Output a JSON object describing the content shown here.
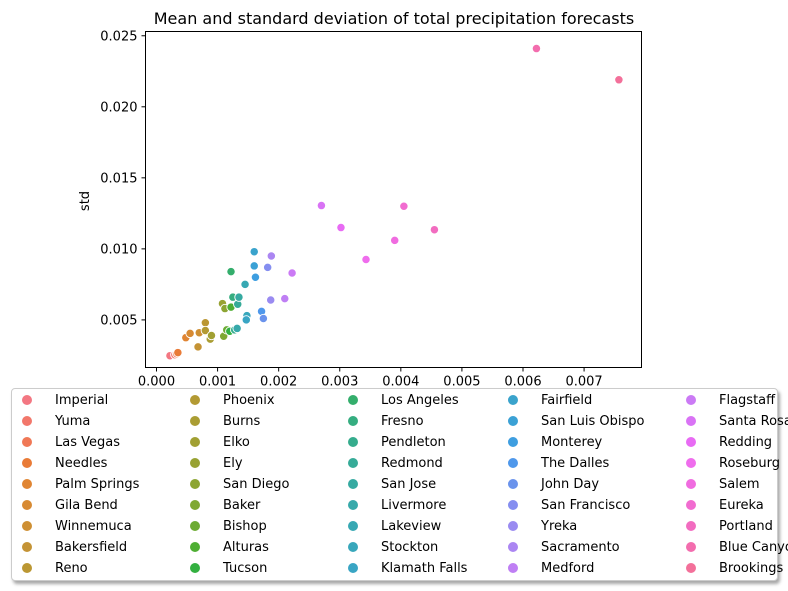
{
  "chart_data": {
    "type": "scatter",
    "title": "Mean and standard deviation of total precipitation forecasts",
    "xlabel": "",
    "ylabel": "std",
    "xlim": [
      -0.00018,
      0.00794
    ],
    "ylim": [
      0.00165,
      0.0253
    ],
    "x_ticks": [
      "0.000",
      "0.001",
      "0.002",
      "0.003",
      "0.004",
      "0.005",
      "0.006",
      "0.007"
    ],
    "x_tick_values": [
      0,
      0.001,
      0.002,
      0.003,
      0.004,
      0.005,
      0.006,
      0.007
    ],
    "y_ticks": [
      "0.005",
      "0.010",
      "0.015",
      "0.020",
      "0.025"
    ],
    "y_tick_values": [
      0.005,
      0.01,
      0.015,
      0.02,
      0.025
    ],
    "grid": false,
    "legend_position": "bottom, outside plot, 5 columns",
    "series": [
      {
        "name": "Imperial",
        "color": "#f37782",
        "x": 0.00022,
        "y": 0.00248
      },
      {
        "name": "Yuma",
        "color": "#f2776b",
        "x": 0.0003,
        "y": 0.00255
      },
      {
        "name": "Las Vegas",
        "color": "#f07856",
        "x": 0.00033,
        "y": 0.00262
      },
      {
        "name": "Needles",
        "color": "#e97b37",
        "x": 0.00035,
        "y": 0.0027
      },
      {
        "name": "Palm Springs",
        "color": "#e08533",
        "x": 0.00048,
        "y": 0.00375
      },
      {
        "name": "Gila Bend",
        "color": "#d78a33",
        "x": 0.00055,
        "y": 0.00405
      },
      {
        "name": "Winnemuca",
        "color": "#ce8f33",
        "x": 0.0007,
        "y": 0.0041
      },
      {
        "name": "Bakersfield",
        "color": "#c49335",
        "x": 0.00068,
        "y": 0.0031
      },
      {
        "name": "Reno",
        "color": "#bb9733",
        "x": 0.0008,
        "y": 0.0048
      },
      {
        "name": "Phoenix",
        "color": "#b39a33",
        "x": 0.0008,
        "y": 0.00425
      },
      {
        "name": "Burns",
        "color": "#aa9d33",
        "x": 0.00088,
        "y": 0.00365
      },
      {
        "name": "Elko",
        "color": "#a1a033",
        "x": 0.0009,
        "y": 0.0039
      },
      {
        "name": "Ely",
        "color": "#98a233",
        "x": 0.00108,
        "y": 0.00615
      },
      {
        "name": "San Diego",
        "color": "#8da533",
        "x": 0.00112,
        "y": 0.0058
      },
      {
        "name": "Baker",
        "color": "#7fa833",
        "x": 0.0011,
        "y": 0.00385
      },
      {
        "name": "Bishop",
        "color": "#6cab33",
        "x": 0.00115,
        "y": 0.0043
      },
      {
        "name": "Alturas",
        "color": "#4eae33",
        "x": 0.00122,
        "y": 0.0059
      },
      {
        "name": "Tucson",
        "color": "#33b040",
        "x": 0.0012,
        "y": 0.0042
      },
      {
        "name": "Los Angeles",
        "color": "#34ae6c",
        "x": 0.00122,
        "y": 0.0084
      },
      {
        "name": "Fresno",
        "color": "#35ad80",
        "x": 0.00125,
        "y": 0.0066
      },
      {
        "name": "Pendleton",
        "color": "#35ac8d",
        "x": 0.00128,
        "y": 0.0043
      },
      {
        "name": "Redmond",
        "color": "#36ab98",
        "x": 0.00133,
        "y": 0.0061
      },
      {
        "name": "San Jose",
        "color": "#36aaa1",
        "x": 0.00135,
        "y": 0.0066
      },
      {
        "name": "Livermore",
        "color": "#37a9aa",
        "x": 0.00132,
        "y": 0.0044
      },
      {
        "name": "Lakeview",
        "color": "#37a8b3",
        "x": 0.00145,
        "y": 0.0075
      },
      {
        "name": "Stockton",
        "color": "#38a7bb",
        "x": 0.00148,
        "y": 0.0053
      },
      {
        "name": "Klamath Falls",
        "color": "#39a5c4",
        "x": 0.00147,
        "y": 0.005
      },
      {
        "name": "Fairfield",
        "color": "#3aa3cc",
        "x": 0.0016,
        "y": 0.0098
      },
      {
        "name": "San Luis Obispo",
        "color": "#3ba1d5",
        "x": 0.0016,
        "y": 0.0088
      },
      {
        "name": "Monterey",
        "color": "#3e9ee0",
        "x": 0.00162,
        "y": 0.008
      },
      {
        "name": "The Dalles",
        "color": "#4f98eb",
        "x": 0.00172,
        "y": 0.0056
      },
      {
        "name": "John Day",
        "color": "#6a93ec",
        "x": 0.00175,
        "y": 0.0051
      },
      {
        "name": "San Francisco",
        "color": "#858ef0",
        "x": 0.00182,
        "y": 0.0087
      },
      {
        "name": "Yreka",
        "color": "#9a8bf1",
        "x": 0.00187,
        "y": 0.0064
      },
      {
        "name": "Sacramento",
        "color": "#ab86f2",
        "x": 0.00188,
        "y": 0.0095
      },
      {
        "name": "Medford",
        "color": "#bf7ff4",
        "x": 0.0021,
        "y": 0.0065
      },
      {
        "name": "Flagstaff",
        "color": "#cb7af5",
        "x": 0.00222,
        "y": 0.0083
      },
      {
        "name": "Santa Rosa",
        "color": "#d973f5",
        "x": 0.0027,
        "y": 0.01305
      },
      {
        "name": "Redding",
        "color": "#e86bf4",
        "x": 0.00302,
        "y": 0.0115
      },
      {
        "name": "Roseburg",
        "color": "#ef6ded",
        "x": 0.00343,
        "y": 0.00925
      },
      {
        "name": "Salem",
        "color": "#f06ce0",
        "x": 0.0039,
        "y": 0.0106
      },
      {
        "name": "Eureka",
        "color": "#f16cd0",
        "x": 0.00405,
        "y": 0.013
      },
      {
        "name": "Portland",
        "color": "#f26cc0",
        "x": 0.00455,
        "y": 0.01135
      },
      {
        "name": "Blue Canyon",
        "color": "#f36dae",
        "x": 0.00622,
        "y": 0.0241
      },
      {
        "name": "Brookings",
        "color": "#f3709a",
        "x": 0.00757,
        "y": 0.0219
      }
    ]
  }
}
